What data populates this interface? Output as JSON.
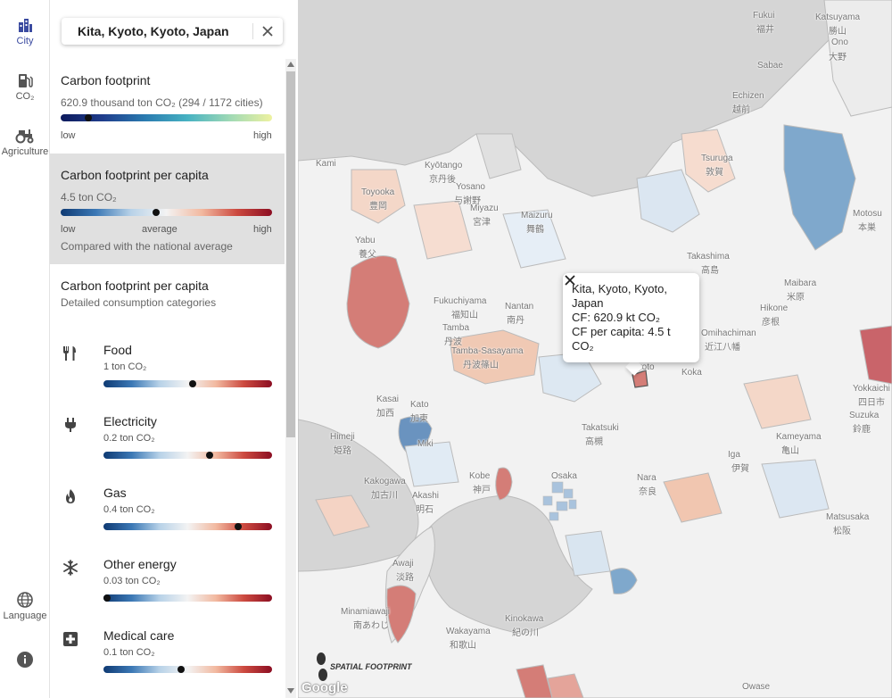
{
  "rail": {
    "items": [
      {
        "label": "City",
        "icon": "city-icon",
        "active": true
      },
      {
        "label": "CO₂",
        "icon": "fuel-icon",
        "active": false
      },
      {
        "label": "Agriculture",
        "icon": "tractor-icon",
        "active": false
      },
      {
        "label": "Language",
        "icon": "globe-icon",
        "active": false
      },
      {
        "label": "",
        "icon": "info-icon",
        "active": false
      }
    ]
  },
  "search": {
    "value": "Kita, Kyoto, Kyoto, Japan"
  },
  "carbon_footprint": {
    "title": "Carbon footprint",
    "value": "620.9 thousand ton CO₂ (294 / 1172 cities)",
    "low": "low",
    "high": "high",
    "position": 0.13
  },
  "per_capita": {
    "title": "Carbon footprint per capita",
    "value": "4.5 ton CO₂",
    "low": "low",
    "average": "average",
    "high": "high",
    "note": "Compared with the national average",
    "position": 0.45
  },
  "detailed": {
    "title": "Carbon footprint per capita",
    "subtitle": "Detailed consumption categories"
  },
  "categories": [
    {
      "name": "Food",
      "value": "1 ton CO₂",
      "icon": "fork-knife-icon",
      "position": 0.53
    },
    {
      "name": "Electricity",
      "value": "0.2 ton CO₂",
      "icon": "plug-icon",
      "position": 0.63
    },
    {
      "name": "Gas",
      "value": "0.4 ton CO₂",
      "icon": "flame-icon",
      "position": 0.8
    },
    {
      "name": "Other energy",
      "value": "0.03 ton CO₂",
      "icon": "snowflake-icon",
      "position": 0.02
    },
    {
      "name": "Medical care",
      "value": "0.1 ton CO₂",
      "icon": "medical-cross-icon",
      "position": 0.46
    }
  ],
  "popup": {
    "line1": "Kita, Kyoto, Kyoto,",
    "line2": "Japan",
    "line3": "CF: 620.9 kt CO₂",
    "line4": "CF per capita: 4.5 t",
    "line5": "CO₂"
  },
  "map": {
    "places": [
      "Fukui",
      "福井",
      "Katsuyama",
      "勝山",
      "Ono",
      "大野",
      "Sabae",
      "Echizen",
      "越前",
      "Tsuruga",
      "敦賀",
      "Kami",
      "Kyōtango",
      "京丹後",
      "Yosano",
      "与謝野",
      "Toyooka",
      "豊岡",
      "Miyazu",
      "宮津",
      "Maizuru",
      "舞鶴",
      "Takashima",
      "高島",
      "Motosu",
      "本巣",
      "Yabu",
      "養父",
      "Fukuchiyama",
      "福知山",
      "Nantan",
      "南丹",
      "Tamba",
      "丹波",
      "Tamba-Sasayama",
      "丹波篠山",
      "Maibara",
      "米原",
      "Hikone",
      "彦根",
      "Omihachiman",
      "近江八幡",
      "Kyoto",
      "Koka",
      "Yokkaichi",
      "四日市",
      "Suzuka",
      "鈴鹿",
      "Kameyama",
      "亀山",
      "Iga",
      "伊賀",
      "Kasai",
      "加西",
      "Kato",
      "加東",
      "Himeji",
      "姫路",
      "Miki",
      "Takatsuki",
      "高槻",
      "Kakogawa",
      "加古川",
      "Kobe",
      "神戸",
      "Osaka",
      "Akashi",
      "明石",
      "Nara",
      "奈良",
      "Matsusaka",
      "松阪",
      "Awaji",
      "淡路",
      "Minamiawaji",
      "南あわじ",
      "Wakayama",
      "和歌山",
      "Kinokawa",
      "紀の川",
      "Owase"
    ],
    "attribution_text": "SPATIAL FOOTPRINT",
    "google_text": "Google"
  }
}
